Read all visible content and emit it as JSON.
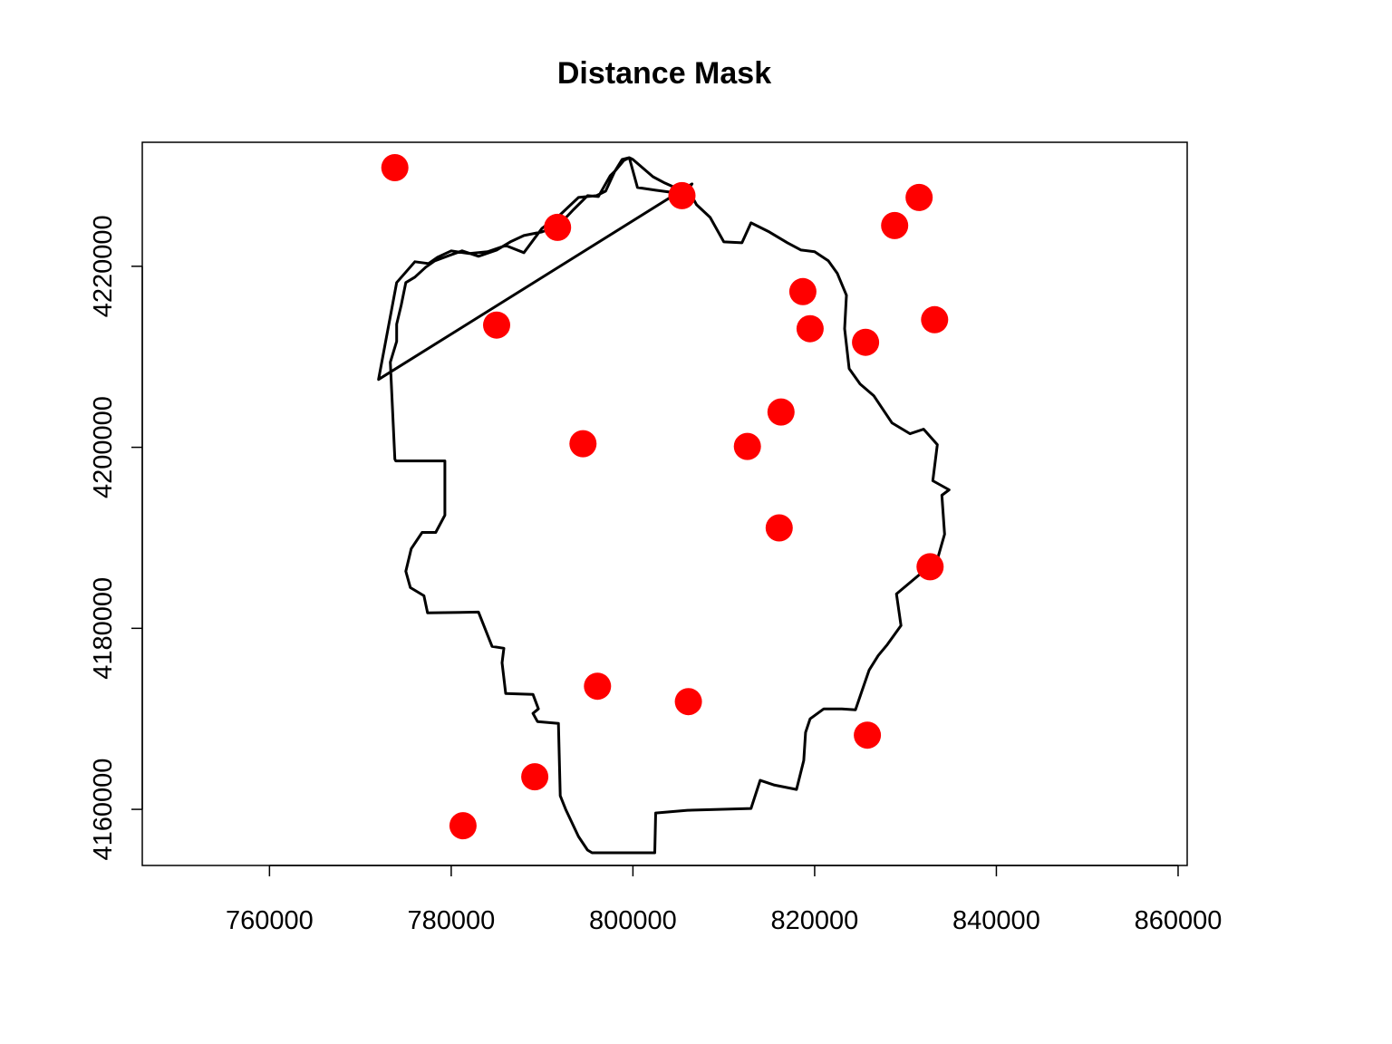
{
  "chart_data": {
    "type": "scatter",
    "title": "Distance Mask",
    "xlabel": "",
    "ylabel": "",
    "xlim": [
      746000,
      861000
    ],
    "ylim": [
      4153800,
      4233700
    ],
    "xticks": [
      760000,
      780000,
      800000,
      820000,
      840000,
      860000
    ],
    "xtick_labels": [
      "760000",
      "780000",
      "800000",
      "820000",
      "840000",
      "860000"
    ],
    "yticks": [
      4160000,
      4180000,
      4200000,
      4220000
    ],
    "ytick_labels": [
      "4160000",
      "4180000",
      "4200000",
      "4220000"
    ],
    "grid": false,
    "legend": "none",
    "points": {
      "color": "#ff0000",
      "x": [
        773800,
        805400,
        791700,
        831500,
        828800,
        818700,
        785000,
        819500,
        825600,
        833200,
        816300,
        794500,
        812600,
        816100,
        832700,
        796100,
        806100,
        825800,
        789200,
        781300
      ],
      "y": [
        4230900,
        4227800,
        4224300,
        4227600,
        4224500,
        4217200,
        4213500,
        4213100,
        4211600,
        4214100,
        4203900,
        4200400,
        4200100,
        4191100,
        4186800,
        4173600,
        4171900,
        4168200,
        4163600,
        4158200
      ]
    },
    "boundary": {
      "color": "#000000",
      "x": [
        772000,
        774000,
        776000,
        777500,
        778500,
        780000,
        782000,
        784000,
        786000,
        788000,
        790000,
        792000,
        794000,
        796000,
        797000,
        798000,
        798800,
        799600,
        800500,
        802500,
        804000,
        806000,
        807000,
        808500,
        810000,
        812000,
        813000,
        815000,
        817000,
        818500,
        820000,
        821500,
        822500,
        823500,
        823300,
        823800,
        825000,
        826500,
        828500,
        830500,
        832000,
        833500,
        833000,
        834800,
        834000,
        834300,
        833500,
        831500,
        829000,
        829500,
        828000,
        827000,
        826000,
        825000,
        824500,
        823000,
        821000,
        819500,
        819000,
        818800,
        818000,
        815500,
        814000,
        813000,
        806000,
        802500,
        802400,
        795500,
        795000,
        794000,
        792600,
        792000,
        791800,
        789500,
        789000,
        789600,
        789000,
        786000,
        785600,
        785800,
        784500,
        783000,
        777400,
        777000,
        775500,
        775000,
        775600,
        776800,
        778300,
        779300,
        779300,
        773900,
        773800,
        773300,
        774000,
        774000,
        774500,
        775000,
        776000,
        777200,
        778200,
        779800,
        781200,
        783000,
        785000,
        786500,
        788000,
        790000,
        791800,
        793500,
        795000,
        796200,
        797500,
        798000,
        799000,
        799600,
        800000,
        802200,
        803500,
        805500,
        806100,
        806500
      ],
      "y": [
        4207500,
        4218200,
        4220500,
        4220300,
        4221000,
        4221700,
        4221400,
        4221600,
        4222300,
        4221500,
        4224200,
        4225700,
        4227600,
        4227800,
        4228300,
        4230500,
        4231800,
        4232000,
        4228700,
        4228400,
        4228200,
        4228600,
        4226800,
        4225400,
        4222700,
        4222600,
        4224800,
        4223800,
        4222600,
        4221800,
        4221600,
        4220600,
        4219200,
        4216800,
        4213100,
        4208700,
        4207000,
        4205700,
        4202700,
        4201500,
        4202000,
        4200300,
        4196300,
        4195300,
        4194700,
        4190400,
        4187600,
        4185900,
        4183800,
        4180300,
        4178200,
        4177000,
        4175400,
        4172500,
        4171000,
        4171100,
        4171100,
        4170000,
        4168500,
        4165400,
        4162200,
        4162700,
        4163200,
        4160100,
        4159900,
        4159600,
        4155200,
        4155200,
        4155500,
        4157000,
        4160000,
        4161500,
        4169500,
        4169700,
        4170600,
        4171100,
        4172700,
        4172800,
        4176200,
        4177800,
        4178000,
        4181800,
        4181700,
        4183600,
        4184500,
        4186300,
        4188800,
        4190600,
        4190600,
        4192500,
        4198500,
        4198500,
        4198700,
        4209400,
        4211700,
        4213600,
        4215700,
        4218200,
        4218800,
        4219900,
        4220600,
        4221200,
        4221700,
        4221100,
        4221800,
        4222700,
        4223400,
        4223800,
        4224500,
        4226300,
        4227800,
        4227700,
        4230000,
        4230500,
        4231700,
        4232000,
        4231800,
        4229900,
        4229200,
        4228300,
        4228500,
        4229100
      ]
    }
  }
}
